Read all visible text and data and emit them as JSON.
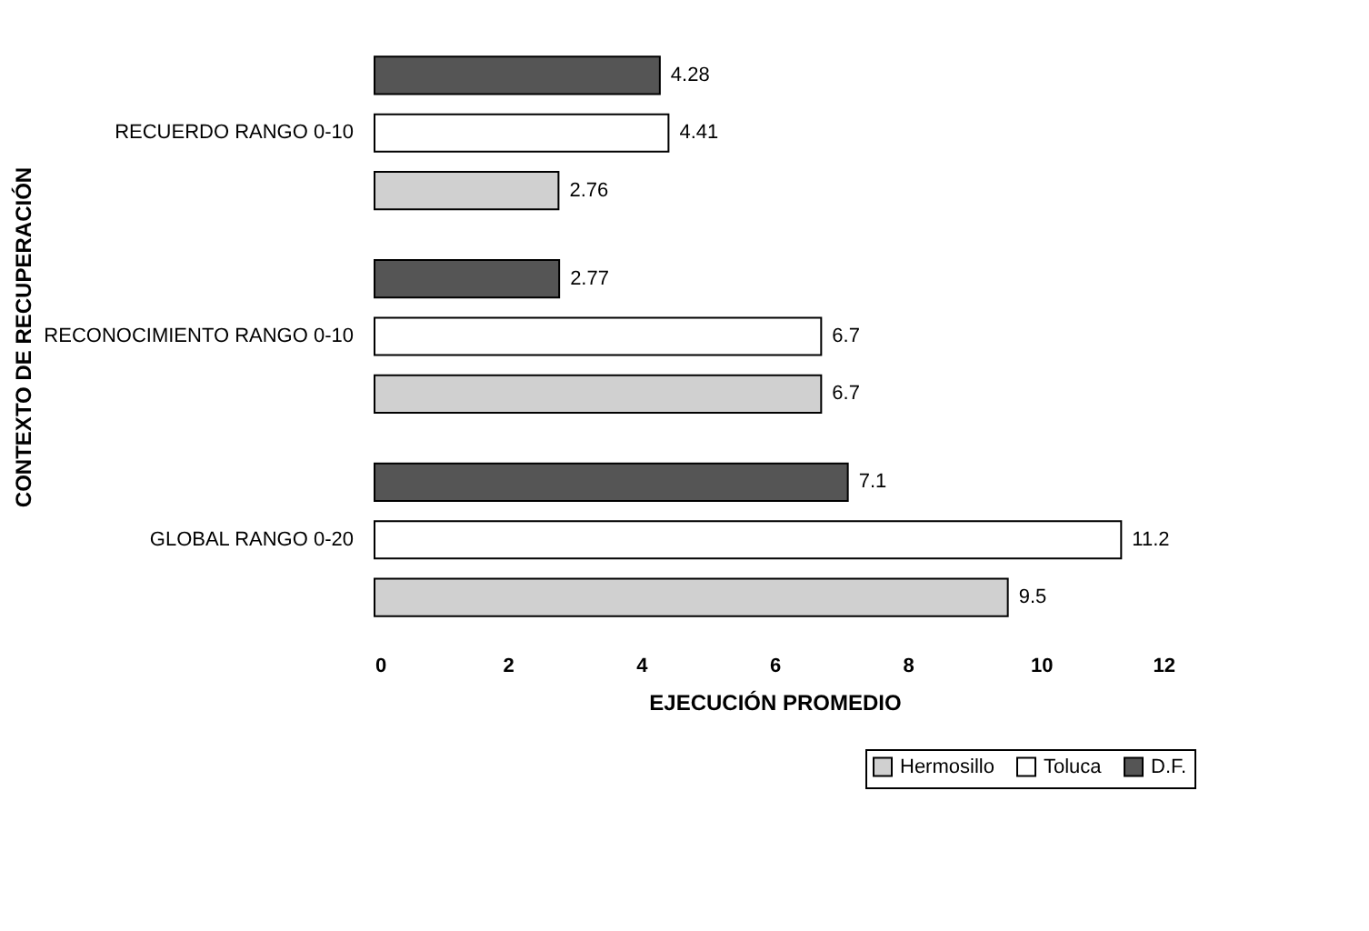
{
  "chart_data": {
    "type": "bar",
    "orientation": "horizontal",
    "xlabel": "EJECUCIÓN PROMEDIO",
    "ylabel": "CONTEXTO DE RECUPERACIÓN",
    "categories": [
      "RECUERDO RANGO 0-10",
      "RECONOCIMIENTO RANGO 0-10",
      "GLOBAL RANGO 0-20"
    ],
    "series": [
      {
        "name": "Hermosillo",
        "color": "#d0d0d0",
        "values": [
          2.76,
          6.7,
          9.5
        ]
      },
      {
        "name": "Toluca",
        "color": "#ffffff",
        "values": [
          4.41,
          6.7,
          11.2
        ]
      },
      {
        "name": "D.F.",
        "color": "#555555",
        "values": [
          4.28,
          2.77,
          7.1
        ]
      }
    ],
    "xlim": [
      0,
      12
    ],
    "xticks": [
      0,
      2,
      4,
      6,
      8,
      10,
      12
    ],
    "grid": false,
    "legend": "bottom right",
    "data_labels": true
  }
}
